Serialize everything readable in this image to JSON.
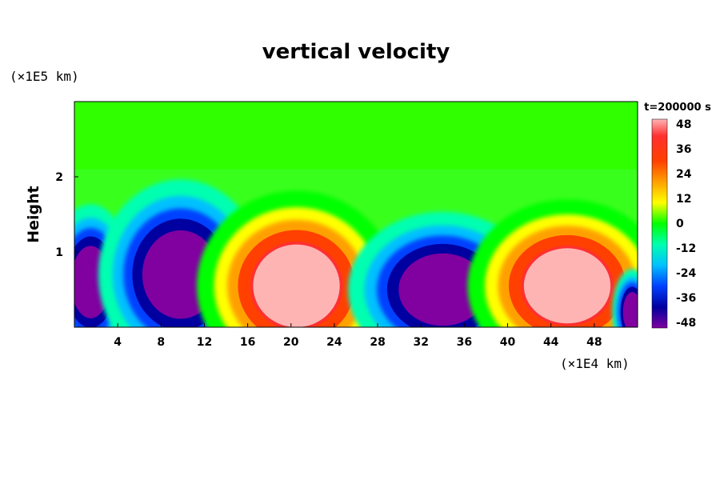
{
  "chart_data": {
    "type": "heatmap",
    "title": "vertical velocity",
    "ylabel": "Height",
    "xlabel": "",
    "x_unit": "(×1E4 km)",
    "y_unit": "(×1E5 km)",
    "time_label": "t=200000 s",
    "xlim": [
      0,
      52
    ],
    "ylim": [
      0,
      3
    ],
    "xticks": [
      4,
      8,
      12,
      16,
      20,
      24,
      28,
      32,
      36,
      40,
      44,
      48
    ],
    "yticks": [
      1,
      2
    ],
    "colorbar": {
      "range": [
        -48,
        48
      ],
      "ticks": [
        48,
        36,
        24,
        12,
        0,
        -12,
        -24,
        -36,
        -48
      ]
    },
    "features": [
      {
        "sign": "negative",
        "x_center": 1.5,
        "y_center": 0.6,
        "x_halfwidth": 1.7,
        "y_halfheight": 0.45,
        "peak": -48
      },
      {
        "sign": "negative",
        "x_center": 9.8,
        "y_center": 0.7,
        "x_halfwidth": 3.3,
        "y_halfheight": 0.55,
        "peak": -48
      },
      {
        "sign": "positive",
        "x_center": 20.5,
        "y_center": 0.55,
        "x_halfwidth": 4.0,
        "y_halfheight": 0.55,
        "peak": 48
      },
      {
        "sign": "negative",
        "x_center": 34.0,
        "y_center": 0.5,
        "x_halfwidth": 3.8,
        "y_halfheight": 0.45,
        "peak": -48
      },
      {
        "sign": "positive",
        "x_center": 45.5,
        "y_center": 0.55,
        "x_halfwidth": 4.0,
        "y_halfheight": 0.5,
        "peak": 48
      },
      {
        "sign": "negative",
        "x_center": 51.5,
        "y_center": 0.2,
        "x_halfwidth": 0.8,
        "y_halfheight": 0.25,
        "peak": -48
      }
    ]
  }
}
